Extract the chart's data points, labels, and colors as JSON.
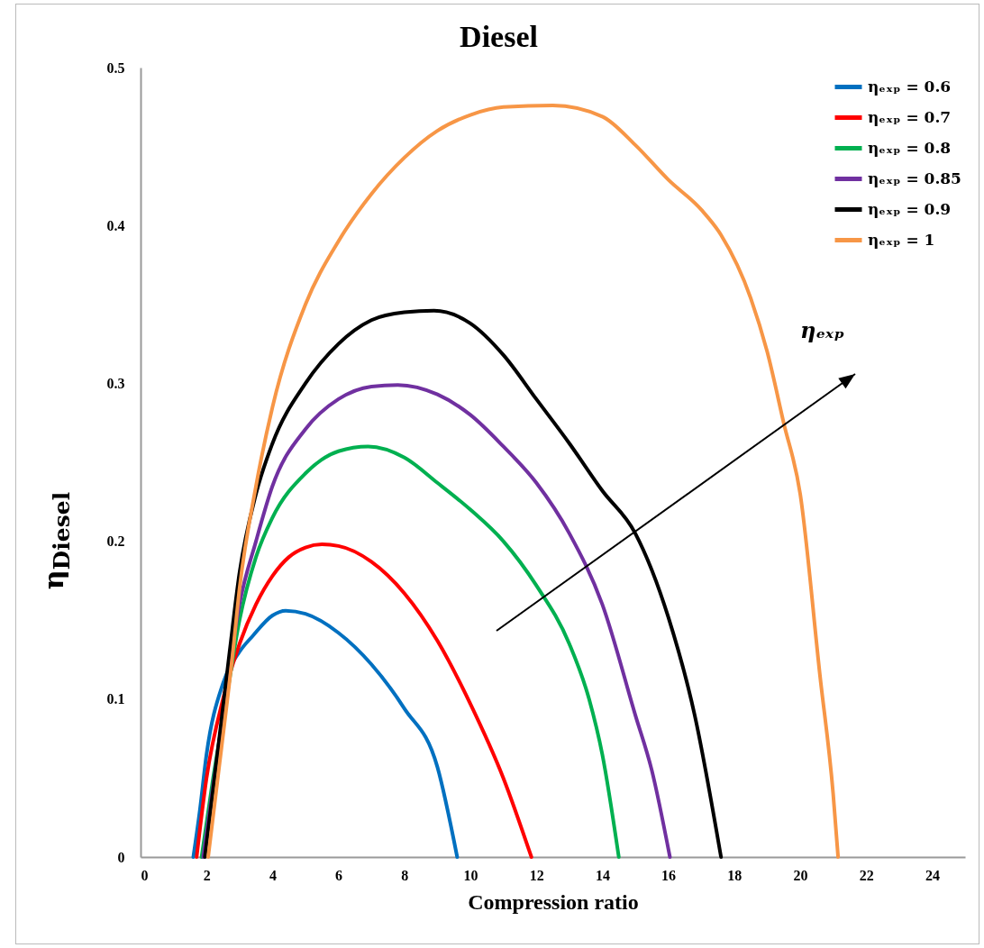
{
  "chart_data": {
    "type": "line",
    "title": "Diesel",
    "xlabel": "Compression ratio",
    "ylabel": "η$_{Diesel}$",
    "xlim": [
      0,
      25
    ],
    "xticks": [
      0,
      2,
      4,
      6,
      8,
      10,
      12,
      14,
      16,
      18,
      20,
      22,
      24
    ],
    "ylim": [
      0,
      0.5
    ],
    "yticks": [
      0,
      0.1,
      0.2,
      0.3,
      0.4,
      0.5
    ],
    "grid": false,
    "legend": "top right",
    "annotations": [
      "ηₑₓₚ"
    ],
    "series": [
      {
        "name": "ηₑₓₚ = 0.6",
        "color": "#0070c0",
        "x": [
          1.6,
          1.8,
          2.0,
          2.5,
          3,
          3.4,
          4,
          4.4,
          5,
          6,
          7,
          8,
          9,
          9.6
        ],
        "values": [
          0,
          0.03,
          0.065,
          0.11,
          0.13,
          0.14,
          0.153,
          0.156,
          0.154,
          0.142,
          0.122,
          0.094,
          0.057,
          0
        ]
      },
      {
        "name": "ηₑₓₚ = 0.7",
        "color": "#ff0000",
        "x": [
          1.7,
          2,
          2.5,
          3,
          3.5,
          4,
          4.5,
          5,
          5.5,
          6,
          7,
          8,
          9,
          10,
          11,
          11.85
        ],
        "values": [
          0,
          0.05,
          0.1,
          0.135,
          0.16,
          0.178,
          0.19,
          0.196,
          0.198,
          0.197,
          0.187,
          0.167,
          0.137,
          0.097,
          0.05,
          0
        ]
      },
      {
        "name": "ηₑₓₚ = 0.8",
        "color": "#00b050",
        "x": [
          1.85,
          2.2,
          2.6,
          3,
          3.5,
          4,
          5,
          6,
          6.9,
          8,
          9,
          10,
          11,
          12,
          13,
          13.6,
          14,
          14.5
        ],
        "values": [
          0,
          0.05,
          0.1,
          0.15,
          0.19,
          0.215,
          0.243,
          0.257,
          0.26,
          0.253,
          0.237,
          0.22,
          0.2,
          0.172,
          0.135,
          0.1,
          0.065,
          0
        ]
      },
      {
        "name": "ηₑₓₚ = 0.85",
        "color": "#7030a0",
        "x": [
          1.9,
          2.3,
          2.7,
          3,
          3.5,
          4,
          5,
          6,
          7,
          7.8,
          9,
          10,
          11,
          12,
          13,
          14,
          15,
          15.5,
          16.05
        ],
        "values": [
          0,
          0.06,
          0.12,
          0.16,
          0.2,
          0.235,
          0.271,
          0.29,
          0.298,
          0.299,
          0.293,
          0.28,
          0.26,
          0.237,
          0.205,
          0.16,
          0.09,
          0.055,
          0
        ]
      },
      {
        "name": "ηₑₓₚ = 0.9",
        "color": "#000000",
        "x": [
          1.95,
          2.3,
          2.7,
          3,
          3.5,
          4,
          5,
          6,
          7,
          8,
          8.9,
          10,
          11,
          12,
          13,
          14,
          15,
          16,
          16.8,
          17.6
        ],
        "values": [
          0,
          0.06,
          0.13,
          0.18,
          0.23,
          0.262,
          0.3,
          0.325,
          0.34,
          0.345,
          0.346,
          0.338,
          0.318,
          0.29,
          0.262,
          0.232,
          0.205,
          0.152,
          0.09,
          0
        ]
      },
      {
        "name": "ηₑₓₚ = 1",
        "color": "#f79646",
        "x": [
          2.05,
          2.4,
          2.8,
          3,
          3.5,
          4,
          5,
          6,
          7,
          8,
          9,
          10,
          11,
          12.5,
          14,
          15,
          16,
          17,
          17.6,
          18.5,
          19,
          19.5,
          20,
          20.6,
          21,
          21.15
        ],
        "values": [
          0,
          0.06,
          0.13,
          0.17,
          0.235,
          0.285,
          0.35,
          0.39,
          0.42,
          0.443,
          0.46,
          0.47,
          0.475,
          0.476,
          0.469,
          0.451,
          0.429,
          0.41,
          0.394,
          0.354,
          0.32,
          0.275,
          0.23,
          0.115,
          0.04,
          0
        ]
      }
    ]
  }
}
